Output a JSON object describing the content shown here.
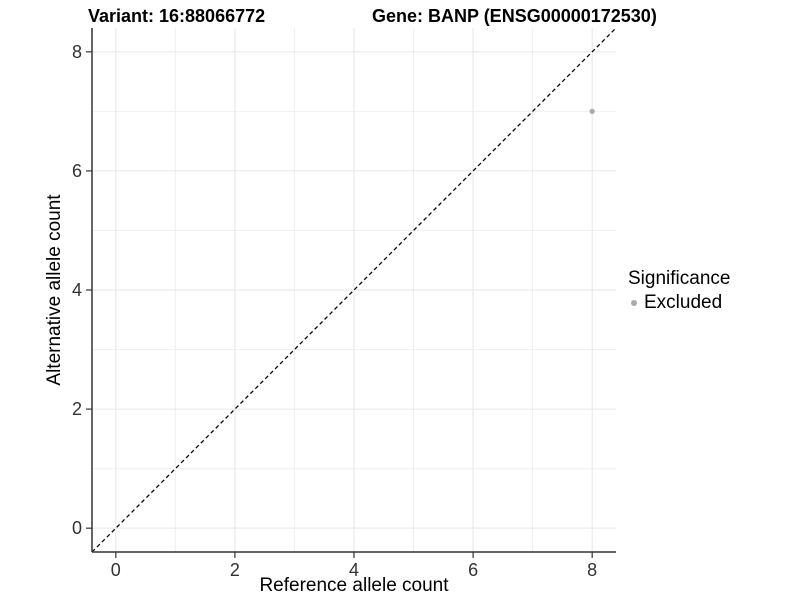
{
  "chart_data": {
    "type": "scatter",
    "title_left": "Variant: 16:88066772",
    "title_right": "Gene: BANP (ENSG00000172530)",
    "xlabel": "Reference allele count",
    "ylabel": "Alternative allele count",
    "xlim": [
      -0.4,
      8.4
    ],
    "ylim": [
      -0.4,
      8.4
    ],
    "xticks": [
      0,
      2,
      4,
      6,
      8
    ],
    "yticks": [
      0,
      2,
      4,
      6,
      8
    ],
    "minor_xticks": [
      1,
      3,
      5,
      7
    ],
    "minor_yticks": [
      1,
      3,
      5,
      7
    ],
    "grid": true,
    "reference_line": {
      "type": "abline",
      "slope": 1,
      "intercept": 0,
      "style": "dashed",
      "color": "#000000"
    },
    "series": [
      {
        "name": "Excluded",
        "color": "#aaaaaa",
        "points": [
          {
            "x": 8,
            "y": 7
          }
        ],
        "point_radius": 2.6
      }
    ],
    "legend": {
      "title": "Significance",
      "position": "right",
      "entries": [
        {
          "label": "Excluded",
          "color": "#aaaaaa"
        }
      ]
    },
    "colors": {
      "axis_line": "#333333",
      "tick": "#333333",
      "tick_label": "#333333",
      "grid_major": "#e6e6e6",
      "grid_minor": "#f0f0f0",
      "background": "#ffffff"
    }
  }
}
